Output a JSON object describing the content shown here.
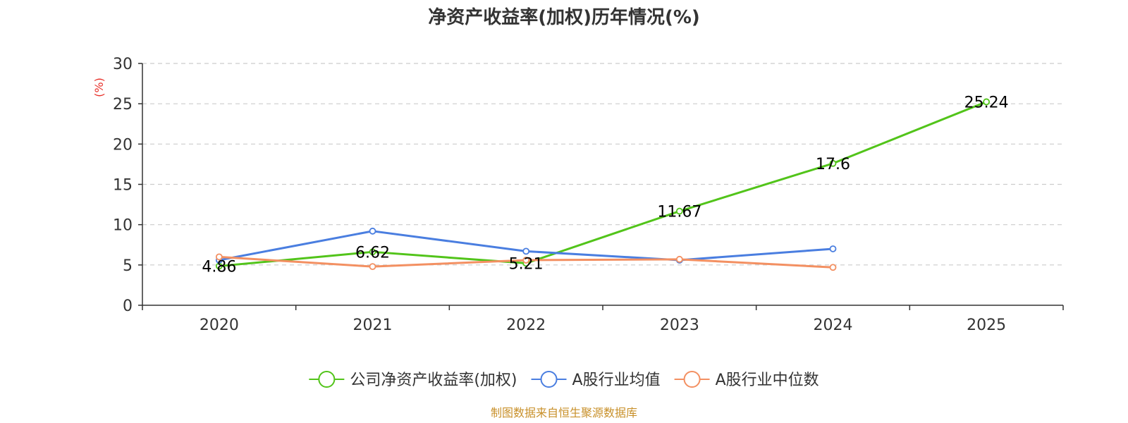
{
  "chart_data": {
    "type": "line",
    "title": "净资产收益率(加权)历年情况(%)",
    "ylabel": "(%)",
    "xlabel": "",
    "ylim": [
      0,
      30
    ],
    "yticks": [
      0,
      5,
      10,
      15,
      20,
      25,
      30
    ],
    "grid": true,
    "legend_position": "bottom",
    "categories": [
      "2020",
      "2021",
      "2022",
      "2023",
      "2024",
      "2025"
    ],
    "series": [
      {
        "name": "公司净资产收益率(加权)",
        "color": "#52c41a",
        "values": [
          4.86,
          6.62,
          5.21,
          11.67,
          17.6,
          25.24
        ],
        "labels": [
          "4.86",
          "6.62",
          "5.21",
          "11.67",
          "17.6",
          "25.24"
        ],
        "show_labels": true
      },
      {
        "name": "A股行业均值",
        "color": "#4a7ee0",
        "values": [
          5.6,
          9.2,
          6.7,
          5.6,
          7.0,
          null
        ],
        "show_labels": false
      },
      {
        "name": "A股行业中位数",
        "color": "#f39062",
        "values": [
          6.0,
          4.8,
          5.6,
          5.7,
          4.7,
          null
        ],
        "show_labels": false
      }
    ]
  },
  "source": "制图数据来自恒生聚源数据库",
  "colors": {
    "axis": "#333333",
    "grid": "#cccccc",
    "ylabel": "#e8312a",
    "source": "#c8902a"
  }
}
